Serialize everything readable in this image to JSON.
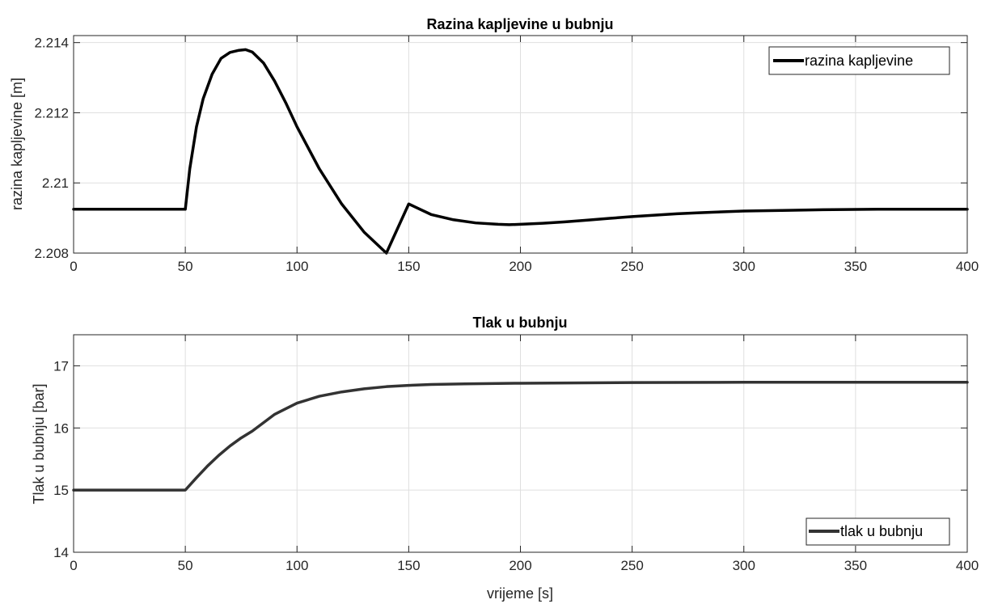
{
  "chart_data": [
    {
      "type": "line",
      "title": "Razina kapljevine u bubnju",
      "xlabel": "",
      "ylabel": "razina kapljevine [m]",
      "xlim": [
        0,
        400
      ],
      "ylim": [
        2.208,
        2.2142
      ],
      "xticks": [
        0,
        50,
        100,
        150,
        200,
        250,
        300,
        350,
        400
      ],
      "xtick_labels": [
        "0",
        "50",
        "100",
        "150",
        "200",
        "250",
        "300",
        "350",
        "400"
      ],
      "yticks": [
        2.208,
        2.21,
        2.212,
        2.214
      ],
      "ytick_labels": [
        "2.208",
        "2.21",
        "2.212",
        "2.214"
      ],
      "grid": true,
      "legend_position": "top-right",
      "series": [
        {
          "name": "razina kapljevine",
          "color": "#000000",
          "x": [
            0,
            50,
            52,
            55,
            58,
            62,
            66,
            70,
            74,
            77,
            80,
            85,
            90,
            95,
            100,
            110,
            120,
            130,
            140,
            150,
            160,
            170,
            180,
            190,
            195,
            200,
            210,
            220,
            230,
            240,
            250,
            260,
            270,
            280,
            300,
            320,
            340,
            360,
            380,
            400
          ],
          "y": [
            2.20925,
            2.20925,
            2.2104,
            2.2116,
            2.2124,
            2.2131,
            2.21355,
            2.21372,
            2.21378,
            2.2138,
            2.21373,
            2.21342,
            2.2129,
            2.21228,
            2.2116,
            2.2104,
            2.2094,
            2.2086,
            2.208,
            2.2094,
            2.2091,
            2.20895,
            2.20886,
            2.20882,
            2.20881,
            2.20882,
            2.20885,
            2.20889,
            2.20894,
            2.20899,
            2.20904,
            2.20908,
            2.20912,
            2.20915,
            2.2092,
            2.20922,
            2.20924,
            2.20925,
            2.20925,
            2.20925
          ]
        }
      ]
    },
    {
      "type": "line",
      "title": "Tlak u bubnju",
      "xlabel": "vrijeme [s]",
      "ylabel": "Tlak u bubnju [bar]",
      "xlim": [
        0,
        400
      ],
      "ylim": [
        14,
        17.5
      ],
      "xticks": [
        0,
        50,
        100,
        150,
        200,
        250,
        300,
        350,
        400
      ],
      "xtick_labels": [
        "0",
        "50",
        "100",
        "150",
        "200",
        "250",
        "300",
        "350",
        "400"
      ],
      "yticks": [
        14,
        15,
        16,
        17
      ],
      "ytick_labels": [
        "14",
        "15",
        "16",
        "17"
      ],
      "grid": true,
      "legend_position": "bottom-right",
      "series": [
        {
          "name": "tlak u bubnju",
          "color": "#333333",
          "x": [
            0,
            50,
            55,
            60,
            65,
            70,
            75,
            80,
            90,
            100,
            110,
            120,
            130,
            140,
            150,
            160,
            175,
            200,
            250,
            300,
            350,
            400
          ],
          "y": [
            15.0,
            15.0,
            15.2,
            15.39,
            15.56,
            15.71,
            15.84,
            15.95,
            16.22,
            16.4,
            16.51,
            16.58,
            16.63,
            16.665,
            16.685,
            16.7,
            16.71,
            16.72,
            16.73,
            16.735,
            16.735,
            16.735
          ]
        }
      ]
    }
  ]
}
